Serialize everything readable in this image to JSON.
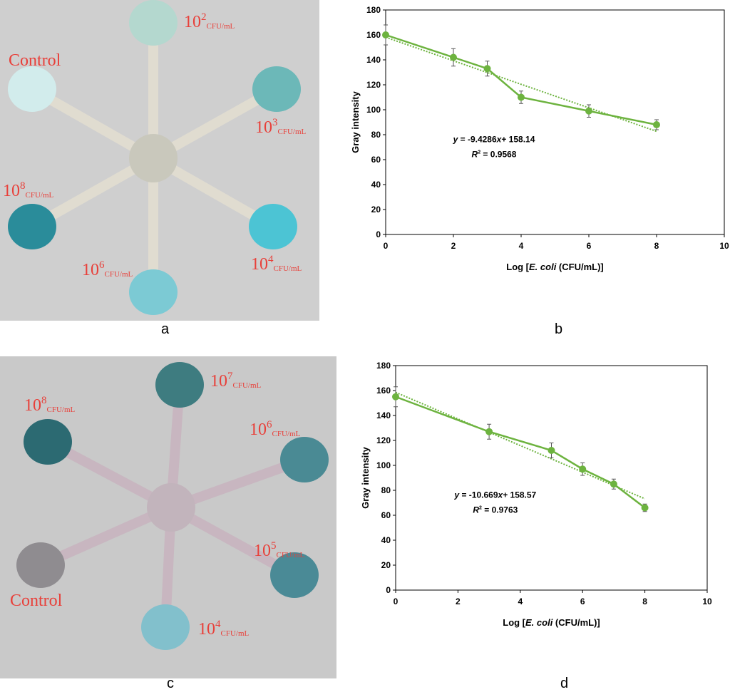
{
  "panels": {
    "a": "a",
    "b": "b",
    "c": "c",
    "d": "d"
  },
  "photo_a": {
    "background": "#cfcfcf",
    "spots": [
      {
        "base": "10",
        "exp": "2",
        "unit": "CFU/mL",
        "color": "#b4d8cf"
      },
      {
        "base": "Control",
        "exp": "",
        "unit": "",
        "color": "#d2ecec"
      },
      {
        "base": "10",
        "exp": "3",
        "unit": "CFU/mL",
        "color": "#6cb8b8"
      },
      {
        "base": "10",
        "exp": "8",
        "unit": "CFU/mL",
        "color": "#2a8c9a"
      },
      {
        "base": "10",
        "exp": "4",
        "unit": "CFU/mL",
        "color": "#4cc4d4"
      },
      {
        "base": "10",
        "exp": "6",
        "unit": "CFU/mL",
        "color": "#7ccad4"
      }
    ]
  },
  "photo_c": {
    "background": "#c9c9c9",
    "spots": [
      {
        "base": "10",
        "exp": "7",
        "unit": "CFU/mL",
        "color": "#3e7c80"
      },
      {
        "base": "10",
        "exp": "8",
        "unit": "CFU/mL",
        "color": "#2c6a72"
      },
      {
        "base": "10",
        "exp": "6",
        "unit": "CFU/mL",
        "color": "#4a8a94"
      },
      {
        "base": "Control",
        "exp": "",
        "unit": "",
        "color": "#8f8c90"
      },
      {
        "base": "10",
        "exp": "5",
        "unit": "CFU/mL",
        "color": "#4a8a96"
      },
      {
        "base": "10",
        "exp": "4",
        "unit": "CFU/mL",
        "color": "#82c0cc"
      }
    ]
  },
  "chart_data": [
    {
      "type": "line",
      "panel": "b",
      "xlabel_prefix": "Log [",
      "xlabel_italic": "E. coli",
      "xlabel_suffix": " (CFU/mL)]",
      "ylabel": "Gray intensity",
      "xlim": [
        0,
        10
      ],
      "ylim": [
        0,
        180
      ],
      "xticks": [
        0,
        2,
        4,
        6,
        8,
        10
      ],
      "yticks": [
        0,
        20,
        40,
        60,
        80,
        100,
        120,
        140,
        160,
        180
      ],
      "x": [
        0,
        2,
        3,
        4,
        6,
        8
      ],
      "y": [
        160,
        142,
        133,
        110,
        99,
        88
      ],
      "error": [
        8,
        7,
        6,
        5,
        5,
        4
      ],
      "trendline": {
        "slope": -9.4286,
        "intercept": 158.14
      },
      "equation": "= -9.4286",
      "equation_tail": "+ 158.14",
      "r2": "= 0.9568",
      "color": "#6db33f",
      "grid": false
    },
    {
      "type": "line",
      "panel": "d",
      "xlabel_prefix": "Log [",
      "xlabel_italic": "E. coli",
      "xlabel_suffix": " (CFU/mL)]",
      "ylabel": "Gray intensity",
      "xlim": [
        0,
        10
      ],
      "ylim": [
        0,
        180
      ],
      "xticks": [
        0,
        2,
        4,
        6,
        8,
        10
      ],
      "yticks": [
        0,
        20,
        40,
        60,
        80,
        100,
        120,
        140,
        160,
        180
      ],
      "x": [
        0,
        3,
        5,
        6,
        7,
        8
      ],
      "y": [
        155,
        127,
        112,
        97,
        85,
        66
      ],
      "error": [
        8,
        6,
        6,
        5,
        4,
        3
      ],
      "trendline": {
        "slope": -10.669,
        "intercept": 158.57
      },
      "equation": "= -10.669",
      "equation_tail": "+ 158.57",
      "r2": "= 0.9763",
      "color": "#6db33f",
      "grid": false
    }
  ]
}
